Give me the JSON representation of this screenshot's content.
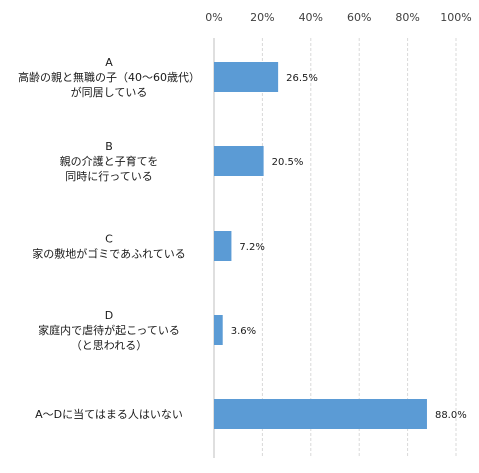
{
  "chart_data": {
    "type": "bar",
    "orientation": "horizontal",
    "categories": [
      [
        "A",
        "高齢の親と無職の子（40～60歳代）",
        "が同居している"
      ],
      [
        "B",
        "親の介護と子育てを",
        "同時に行っている"
      ],
      [
        "C",
        "家の敷地がゴミであふれている"
      ],
      [
        "D",
        "家庭内で虐待が起こっている",
        "（と思われる）"
      ],
      [
        "A～Dに当てはまる人はいない"
      ]
    ],
    "values": [
      26.5,
      20.5,
      7.2,
      3.6,
      88.0
    ],
    "data_labels": [
      "26.5%",
      "20.5%",
      "7.2%",
      "3.6%",
      "88.0%"
    ],
    "ticks": [
      0,
      20,
      40,
      60,
      80,
      100
    ],
    "tick_labels": [
      "0%",
      "20%",
      "40%",
      "60%",
      "80%",
      "100%"
    ],
    "xlim": [
      0,
      100
    ],
    "axis_position": "top",
    "grid": true,
    "bar_color": "#5b9bd5",
    "grid_color": "#d9d9d9",
    "title": "",
    "xlabel": "",
    "ylabel": ""
  }
}
